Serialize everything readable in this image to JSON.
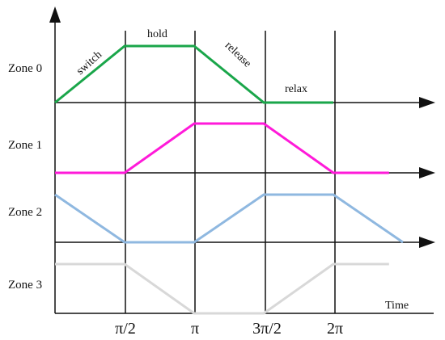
{
  "zones": [
    {
      "label": "Zone 0",
      "color": "#1aa64a",
      "points": [
        [
          0,
          0
        ],
        [
          0.5,
          1
        ],
        [
          1,
          1
        ],
        [
          1.5,
          0
        ],
        [
          2,
          0
        ]
      ]
    },
    {
      "label": "Zone 1",
      "color": "#ff1ad9",
      "points": [
        [
          0,
          0
        ],
        [
          0.5,
          0
        ],
        [
          1,
          1
        ],
        [
          1.5,
          1
        ],
        [
          2,
          0
        ],
        [
          2.4,
          0
        ]
      ]
    },
    {
      "label": "Zone 2",
      "color": "#8fb8e0",
      "points": [
        [
          0,
          1
        ],
        [
          0.5,
          0
        ],
        [
          1,
          0
        ],
        [
          1.5,
          1
        ],
        [
          2,
          1
        ],
        [
          2.5,
          0
        ]
      ]
    },
    {
      "label": "Zone 3",
      "color": "#d8d8d8",
      "points": [
        [
          0,
          1
        ],
        [
          0.5,
          1
        ],
        [
          1,
          0
        ],
        [
          1.5,
          0
        ],
        [
          2,
          1
        ],
        [
          2.4,
          1
        ]
      ]
    }
  ],
  "phases": [
    "switch",
    "hold",
    "release",
    "relax"
  ],
  "ticks": [
    {
      "label": "π/2",
      "x": 0.5
    },
    {
      "label": "π",
      "x": 1
    },
    {
      "label": "3π/2",
      "x": 1.5
    },
    {
      "label": "2π",
      "x": 2
    }
  ],
  "axis_title": "Time"
}
